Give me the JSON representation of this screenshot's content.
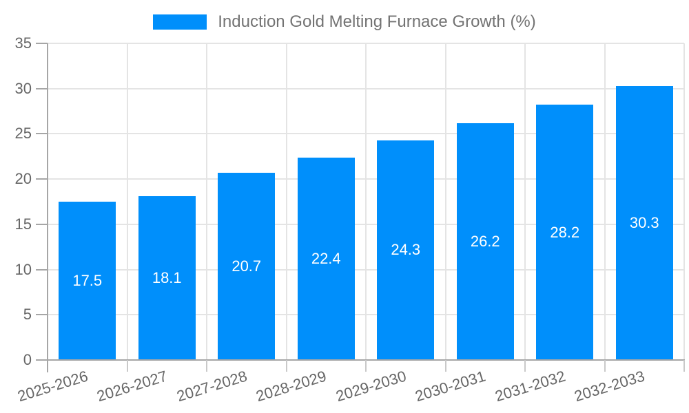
{
  "chart_data": {
    "type": "bar",
    "title": "Induction Gold Melting Furnace Growth (%)",
    "series": [
      {
        "name": "Induction Gold Melting Furnace Growth (%)",
        "values": [
          17.5,
          18.1,
          20.7,
          22.4,
          24.3,
          26.2,
          28.2,
          30.3
        ]
      }
    ],
    "categories": [
      "2025-2026",
      "2026-2027",
      "2027-2028",
      "2028-2029",
      "2029-2030",
      "2030-2031",
      "2031-2032",
      "2032-2033"
    ],
    "values": [
      17.5,
      18.1,
      20.7,
      22.4,
      24.3,
      26.2,
      28.2,
      30.3
    ],
    "value_labels": [
      "17.5",
      "18.1",
      "20.7",
      "22.4",
      "24.3",
      "26.2",
      "28.2",
      "30.3"
    ],
    "xlabel": "",
    "ylabel": "",
    "ylim": [
      0,
      35
    ],
    "yticks": [
      0,
      5,
      10,
      15,
      20,
      25,
      30,
      35
    ],
    "grid": true,
    "x_label_rotation_deg": -17,
    "legend_position": "top",
    "colors": {
      "bar": "#008FFB",
      "grid": "#e4e4e4",
      "axis": "#a6a6a6",
      "minor_tick": "#c9c9c9",
      "tick_text": "#666666",
      "legend_text": "#737373",
      "bar_label_text": "#ffffff",
      "background": "#ffffff"
    }
  }
}
